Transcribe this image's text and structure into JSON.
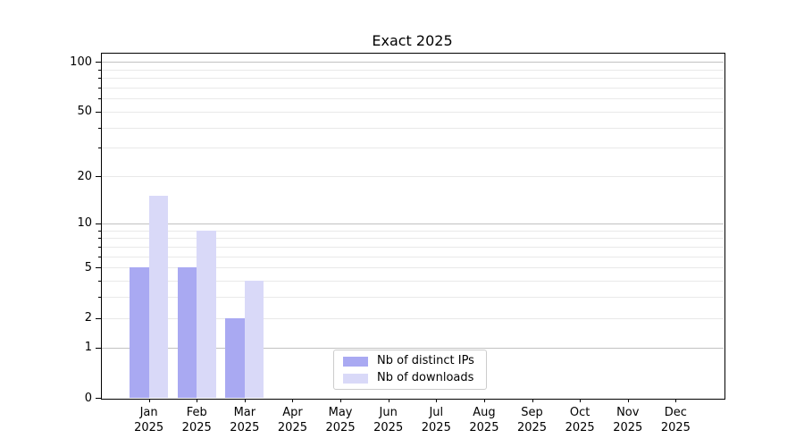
{
  "title": "Exact 2025",
  "colors": {
    "distinct_ips_bar": "#a9a9f2",
    "downloads_bar": "#d9d9f8",
    "major_gridline": "#c2c2c2",
    "minor_gridline": "#e9e9e9",
    "axis_spine": "#000000",
    "legend_border": "#cccccc"
  },
  "legend": {
    "entries": [
      "Nb of distinct IPs",
      "Nb of downloads"
    ]
  },
  "chart_data": {
    "type": "bar",
    "title": "Exact 2025",
    "categories": [
      "Jan 2025",
      "Feb 2025",
      "Mar 2025",
      "Apr 2025",
      "May 2025",
      "Jun 2025",
      "Jul 2025",
      "Aug 2025",
      "Sep 2025",
      "Oct 2025",
      "Nov 2025",
      "Dec 2025"
    ],
    "months": [
      "Jan",
      "Feb",
      "Mar",
      "Apr",
      "May",
      "Jun",
      "Jul",
      "Aug",
      "Sep",
      "Oct",
      "Nov",
      "Dec"
    ],
    "year": "2025",
    "series": [
      {
        "name": "Nb of distinct IPs",
        "color": "#a9a9f2",
        "values": [
          5,
          5,
          2,
          0,
          0,
          0,
          0,
          0,
          0,
          0,
          0,
          0
        ]
      },
      {
        "name": "Nb of downloads",
        "color": "#d9d9f8",
        "values": [
          15,
          9,
          4,
          0,
          0,
          0,
          0,
          0,
          0,
          0,
          0,
          0
        ]
      }
    ],
    "xlabel": "",
    "ylabel": "",
    "yscale": "log1p",
    "ylim": [
      0,
      113
    ],
    "ytick_values": [
      0,
      1,
      2,
      5,
      10,
      20,
      50,
      100
    ],
    "major_grid_values": [
      1,
      10,
      100
    ],
    "minor_grid_values": [
      2,
      3,
      4,
      5,
      6,
      7,
      8,
      9,
      20,
      30,
      40,
      50,
      60,
      70,
      80,
      90
    ],
    "grid": true,
    "legend_position": "lower center"
  }
}
